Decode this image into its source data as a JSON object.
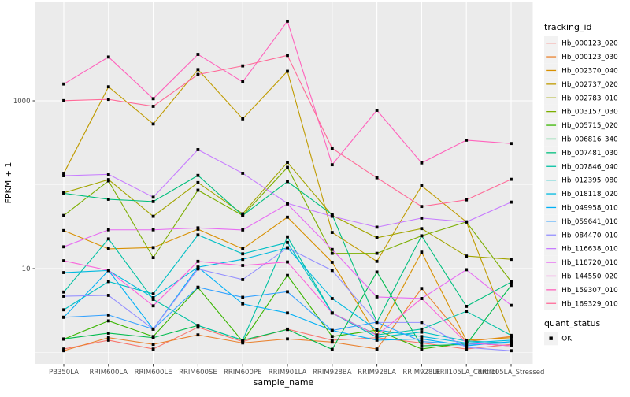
{
  "chart_data": {
    "type": "line",
    "title": "",
    "xlabel": "sample_name",
    "ylabel": "FPKM + 1",
    "x_categories": [
      "PB350LA",
      "RRIM600LA",
      "RRIM600LE",
      "RRIM600SE",
      "RRIM600PE",
      "RRIM901LA",
      "RRIM928BA",
      "RRIM928LA",
      "RRIM928LE",
      "RRII105LA_Control",
      "RRII105LA_Stressed"
    ],
    "y_axis": {
      "scale": "log10",
      "major_ticks": [
        {
          "label": "1000",
          "value": 1000
        },
        {
          "label": "10",
          "value": 10
        }
      ],
      "minor_gridline_values": [
        10000,
        100,
        1
      ],
      "range_approx": [
        0.75,
        15000
      ]
    },
    "legend": {
      "title": "tracking_id",
      "position": "right"
    },
    "quant_legend": {
      "title": "quant_status",
      "items": [
        {
          "label": "OK",
          "glyph": "black-square"
        }
      ]
    },
    "style": {
      "panel_bg": "#EBEBEB",
      "grid_color": "#FFFFFF",
      "point_color": "#000000",
      "tick_label_color": "#4D4D4D",
      "axis_title_color": "#000000",
      "legend_key_bg": "#F2F2F2"
    },
    "series": [
      {
        "name": "Hb_000123_020",
        "color": "#F8766D",
        "values": [
          1.1,
          1.4,
          1.1,
          2.0,
          1.35,
          1.9,
          1.4,
          1.5,
          1.3,
          1.1,
          1.25
        ]
      },
      {
        "name": "Hb_000123_030",
        "color": "#EA8331",
        "values": [
          1.05,
          1.5,
          1.25,
          1.62,
          1.3,
          1.45,
          1.33,
          1.1,
          5.8,
          1.35,
          1.55
        ]
      },
      {
        "name": "Hb_002370_040",
        "color": "#D89000",
        "values": [
          28.4,
          17.2,
          17.8,
          29.5,
          17.2,
          41.0,
          11.9,
          1.6,
          15.7,
          1.4,
          1.5
        ]
      },
      {
        "name": "Hb_002737_020",
        "color": "#C09B00",
        "values": [
          137,
          1470,
          530,
          2360,
          610,
          2250,
          27.0,
          12.2,
          97.0,
          36.0,
          1.55
        ]
      },
      {
        "name": "Hb_002783_010",
        "color": "#A3A500",
        "values": [
          80,
          115,
          42,
          106,
          45,
          185,
          43,
          23.3,
          30.0,
          14.1,
          12.9
        ]
      },
      {
        "name": "Hb_003157_030",
        "color": "#7CAE00",
        "values": [
          43,
          111,
          13.5,
          86,
          43,
          161,
          15.2,
          15.2,
          24.6,
          36,
          7.0
        ]
      },
      {
        "name": "Hb_005715_020",
        "color": "#39B600",
        "values": [
          1.44,
          2.38,
          1.55,
          5.95,
          1.35,
          8.3,
          1.55,
          1.85,
          1.1,
          1.3,
          1.2
        ]
      },
      {
        "name": "Hb_006816_340",
        "color": "#00BB4E",
        "values": [
          1.45,
          1.7,
          1.5,
          2.1,
          1.4,
          1.88,
          1.09,
          9.1,
          1.2,
          1.25,
          6.3
        ]
      },
      {
        "name": "Hb_007481_030",
        "color": "#00BF7D",
        "values": [
          79,
          67,
          63,
          129,
          43,
          109,
          44,
          2.3,
          24.6,
          3.55,
          6.9
        ]
      },
      {
        "name": "Hb_007846_040",
        "color": "#00C1A3",
        "values": [
          5.26,
          22.6,
          4.3,
          2.1,
          1.4,
          23.9,
          2.96,
          1.62,
          1.9,
          3.1,
          1.6
        ]
      },
      {
        "name": "Hb_012395_080",
        "color": "#00BFC4",
        "values": [
          3.23,
          7.0,
          5.0,
          25.2,
          15.0,
          20.5,
          2.96,
          1.52,
          1.75,
          1.37,
          1.3
        ]
      },
      {
        "name": "Hb_018118_020",
        "color": "#00BAE0",
        "values": [
          8.97,
          9.5,
          4.5,
          10.4,
          12.9,
          17.7,
          4.4,
          1.86,
          1.55,
          1.3,
          1.4
        ]
      },
      {
        "name": "Hb_049958_010",
        "color": "#00B0F6",
        "values": [
          2.63,
          9.5,
          1.9,
          10.4,
          3.8,
          2.96,
          1.83,
          1.4,
          1.45,
          1.2,
          1.35
        ]
      },
      {
        "name": "Hb_059641_010",
        "color": "#35A2FF",
        "values": [
          2.63,
          2.8,
          1.9,
          6.0,
          4.55,
          5.3,
          1.83,
          2.3,
          1.35,
          1.25,
          1.3
        ]
      },
      {
        "name": "Hb_084470_010",
        "color": "#9590FF",
        "values": [
          4.69,
          4.8,
          1.9,
          9.9,
          7.4,
          17.7,
          9.5,
          2.28,
          2.28,
          1.15,
          1.05
        ]
      },
      {
        "name": "Hb_116638_010",
        "color": "#C77CFF",
        "values": [
          128,
          133,
          71,
          262,
          137,
          60,
          42,
          31.2,
          40,
          36,
          62
        ]
      },
      {
        "name": "Hb_118720_010",
        "color": "#E76BF3",
        "values": [
          18.2,
          29,
          29,
          30.6,
          28.9,
          59,
          16.9,
          4.6,
          4.4,
          9.7,
          3.65
        ]
      },
      {
        "name": "Hb_144550_020",
        "color": "#FA62DB",
        "values": [
          12.4,
          9.5,
          3.6,
          12.2,
          10.9,
          12.0,
          2.96,
          1.6,
          4.4,
          1.3,
          1.2
        ]
      },
      {
        "name": "Hb_159307_010",
        "color": "#FF62BC",
        "values": [
          1586,
          3330,
          1060,
          3580,
          1683,
          8900,
          173,
          771,
          182,
          340,
          310
        ]
      },
      {
        "name": "Hb_169329_010",
        "color": "#FF6A98",
        "values": [
          1005,
          1040,
          860,
          2060,
          2610,
          3480,
          271,
          121,
          55,
          66,
          116
        ]
      }
    ]
  }
}
